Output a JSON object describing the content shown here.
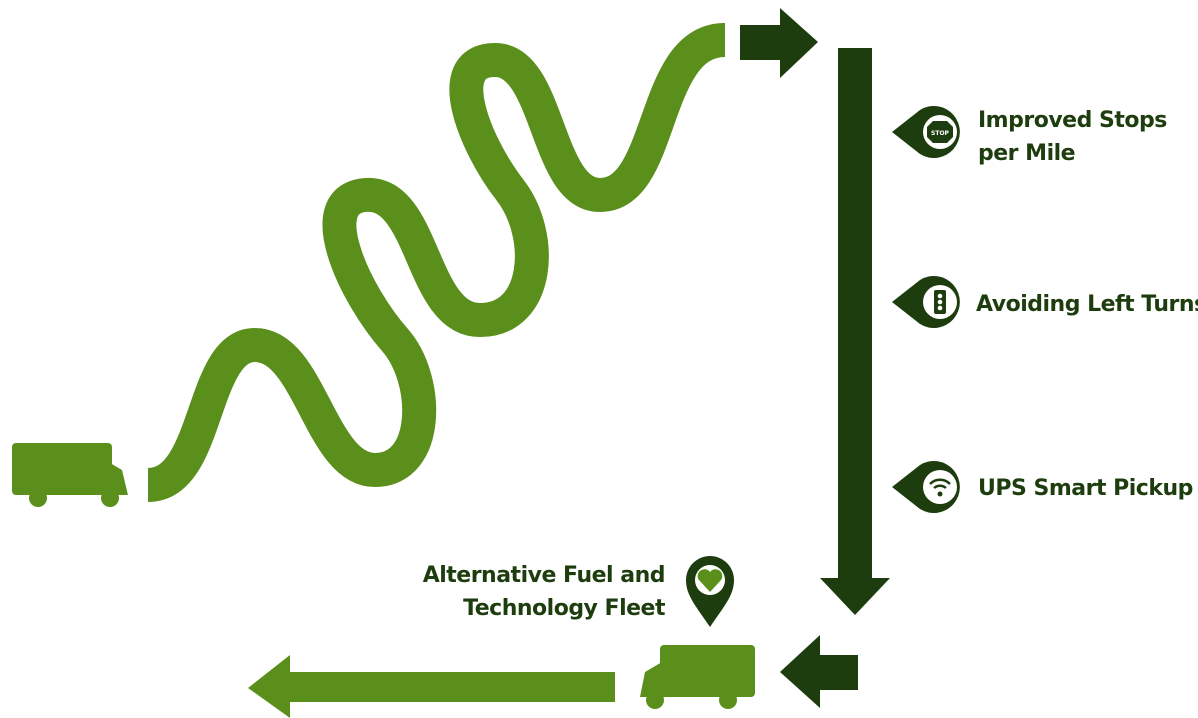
{
  "labels": [
    {
      "lines": [
        "Improved Stops",
        "per Mile"
      ],
      "icon_text": "STOP"
    },
    {
      "lines": [
        "Avoiding Left Turns"
      ]
    },
    {
      "lines": [
        "UPS Smart Pickup"
      ]
    }
  ],
  "fleet": {
    "lines": [
      "Alternative Fuel and",
      "Technology Fleet"
    ]
  }
}
